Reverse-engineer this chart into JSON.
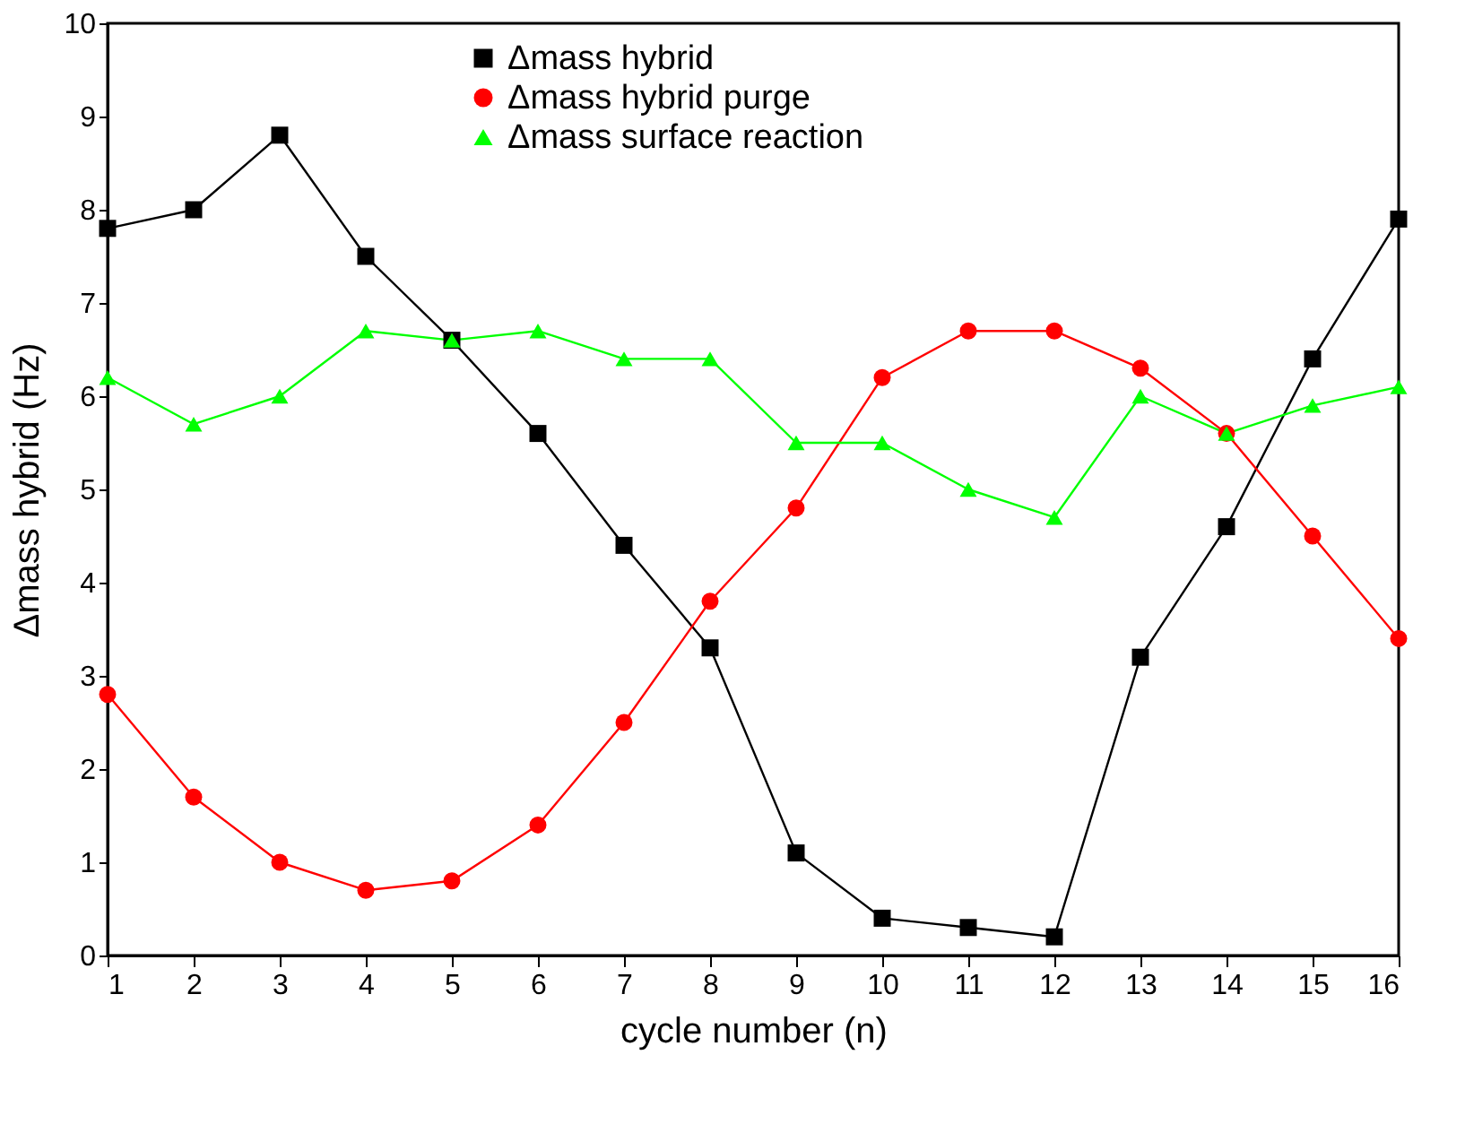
{
  "chart_data": {
    "type": "line",
    "xlabel": "cycle number (n)",
    "ylabel": "Δmass hybrid (Hz)",
    "x": [
      1,
      2,
      3,
      4,
      5,
      6,
      7,
      8,
      9,
      10,
      11,
      12,
      13,
      14,
      15,
      16
    ],
    "xlim": [
      1,
      16
    ],
    "xticks": [
      1,
      2,
      3,
      4,
      5,
      6,
      7,
      8,
      9,
      10,
      11,
      12,
      13,
      14,
      15,
      16
    ],
    "ylim": [
      0,
      10
    ],
    "yticks": [
      0,
      1,
      2,
      3,
      4,
      5,
      6,
      7,
      8,
      9,
      10
    ],
    "grid": false,
    "legend": "top",
    "line_style": "solid",
    "series": [
      {
        "name": "Δmass hybrid",
        "color": "#000000",
        "marker": "square",
        "values": [
          7.8,
          8.0,
          8.8,
          7.5,
          6.6,
          5.6,
          4.4,
          3.3,
          1.1,
          0.4,
          0.3,
          0.2,
          3.2,
          4.6,
          6.4,
          7.9
        ]
      },
      {
        "name": "Δmass hybrid purge",
        "color": "#ff0000",
        "marker": "circle",
        "values": [
          2.8,
          1.7,
          1.0,
          0.7,
          0.8,
          1.4,
          2.5,
          3.8,
          4.8,
          6.2,
          6.7,
          6.7,
          6.3,
          5.6,
          4.5,
          3.4
        ]
      },
      {
        "name": "Δmass surface reaction",
        "color": "#00ff00",
        "marker": "triangle",
        "values": [
          6.2,
          5.7,
          6.0,
          6.7,
          6.6,
          6.7,
          6.4,
          6.4,
          5.5,
          5.5,
          5.0,
          4.7,
          6.0,
          5.6,
          5.9,
          6.1
        ]
      }
    ]
  }
}
